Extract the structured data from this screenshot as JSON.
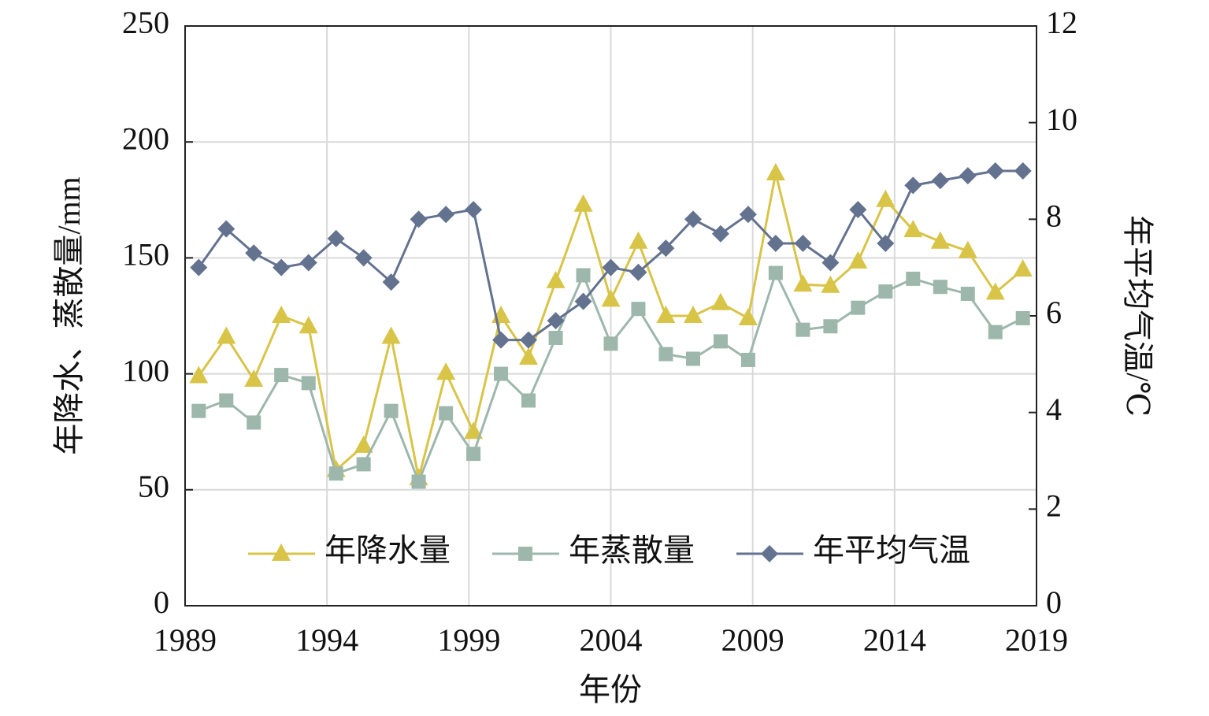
{
  "chart_data": {
    "type": "line",
    "x_label": "年份",
    "y_label": "年降水、蒸散量/mm",
    "y2_label": "年平均气温/℃",
    "x": [
      1989.48,
      1990.45,
      1991.42,
      1992.39,
      1993.35,
      1994.32,
      1995.29,
      1996.26,
      1997.23,
      1998.19,
      1999.16,
      2000.13,
      2001.1,
      2002.06,
      2003.03,
      2004.0,
      2004.97,
      2005.94,
      2006.9,
      2007.87,
      2008.84,
      2009.81,
      2010.77,
      2011.74,
      2012.71,
      2013.68,
      2014.65,
      2015.61,
      2016.58,
      2017.55,
      2018.52
    ],
    "xlim": [
      1989,
      2019
    ],
    "xticks": [
      1989,
      1994,
      1999,
      2004,
      2009,
      2014,
      2019
    ],
    "ylim": [
      0,
      250
    ],
    "yticks": [
      0,
      50,
      100,
      150,
      200,
      250
    ],
    "y2lim": [
      0,
      12
    ],
    "y2ticks": [
      0,
      2,
      4,
      6,
      8,
      10,
      12
    ],
    "grid": true,
    "legend": "lower center",
    "series": [
      {
        "name": "年降水量",
        "color": "#d8c447",
        "marker": "triangle",
        "values": [
          99,
          116,
          97.5,
          125,
          120.5,
          58.5,
          69,
          116,
          55,
          100.5,
          75,
          125,
          107,
          140,
          173,
          132,
          157,
          125,
          125,
          130.5,
          124,
          186.5,
          138.5,
          138,
          148.5,
          175,
          162,
          157,
          153,
          135,
          145
        ]
      },
      {
        "name": "年蒸散量",
        "color": "#9db7ac",
        "marker": "square",
        "values": [
          84,
          88.5,
          79,
          99.5,
          96,
          57,
          61,
          84,
          53.5,
          83,
          65.5,
          100,
          88.5,
          115.5,
          142.5,
          113,
          128,
          108.5,
          106.5,
          114,
          106,
          143.5,
          119,
          120.5,
          128.5,
          135.5,
          141,
          137.5,
          134.5,
          118,
          124
        ]
      },
      {
        "name": "年平均气温",
        "color": "#63728e",
        "marker": "diamond",
        "axis": "y2",
        "values": [
          7.0,
          7.8,
          7.3,
          7.0,
          7.1,
          7.6,
          7.2,
          6.7,
          8.0,
          8.1,
          8.2,
          5.5,
          5.5,
          5.9,
          6.3,
          7.0,
          6.9,
          7.4,
          8.0,
          7.7,
          8.1,
          7.5,
          7.5,
          7.1,
          8.2,
          7.5,
          8.7,
          8.8,
          8.9,
          9.0,
          9.0
        ]
      }
    ]
  }
}
